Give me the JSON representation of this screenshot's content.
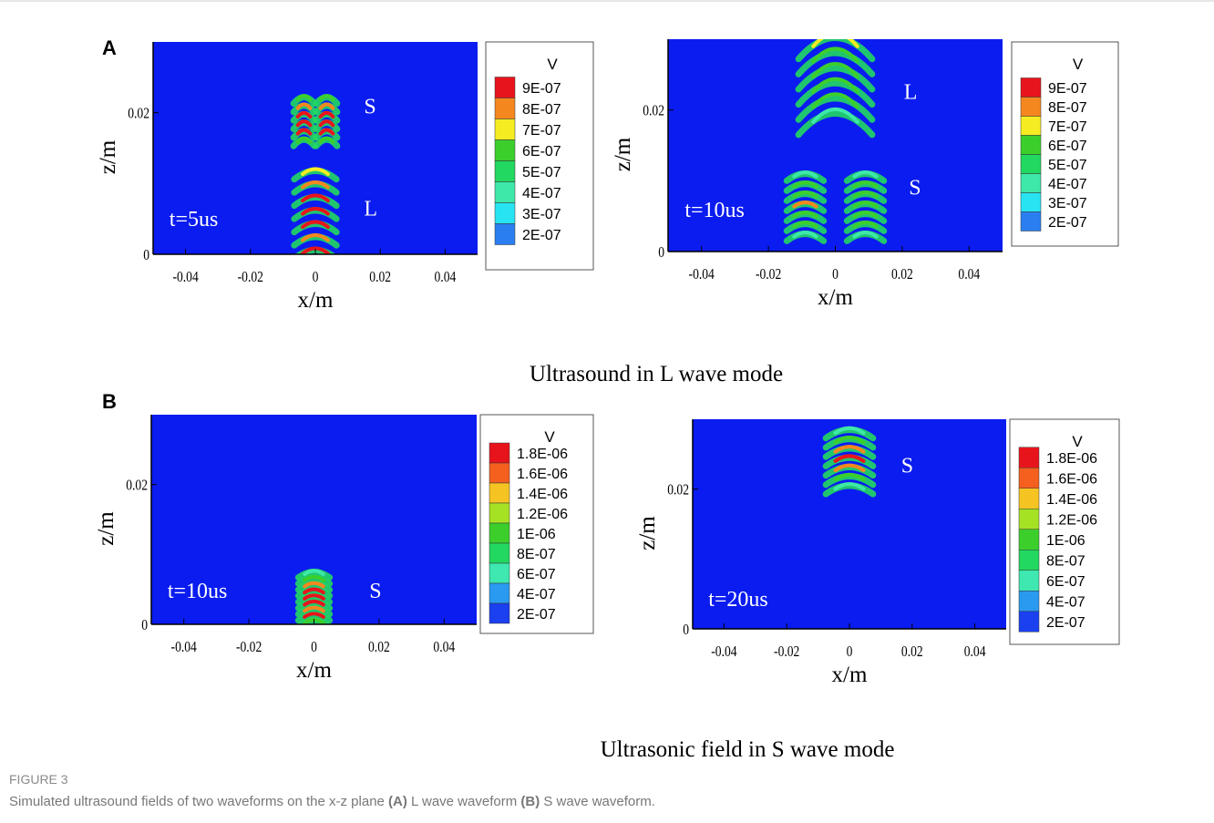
{
  "panel_labels": [
    "A",
    "B"
  ],
  "subtitles": [
    "Ultrasound in L wave mode",
    "Ultrasonic field in S wave mode"
  ],
  "caption": {
    "label": "FIGURE 3",
    "parts": [
      "Simulated ultrasound fields of two waveforms on the x-z plane ",
      "(A)",
      " L wave waveform ",
      "(B)",
      " S wave waveform."
    ]
  },
  "chart_data": [
    {
      "type": "contour",
      "xlabel": "x/m",
      "ylabel": "z/m",
      "xlim": [
        -0.05,
        0.05
      ],
      "ylim": [
        0,
        0.03
      ],
      "xticks": [
        -0.04,
        -0.02,
        0,
        0.02,
        0.04
      ],
      "yticks": [
        0,
        0.02
      ],
      "background": "#0b1cf0",
      "legend_title": "V",
      "levels": [
        {
          "value": 9e-07,
          "label": "9E-07"
        },
        {
          "value": 8e-07,
          "label": "8E-07"
        },
        {
          "value": 7e-07,
          "label": "7E-07"
        },
        {
          "value": 6e-07,
          "label": "6E-07"
        },
        {
          "value": 5e-07,
          "label": "5E-07"
        },
        {
          "value": 4e-07,
          "label": "4E-07"
        },
        {
          "value": 3e-07,
          "label": "3E-07"
        },
        {
          "value": 2e-07,
          "label": "2E-07"
        }
      ],
      "level_colors": [
        "#e8141c",
        "#f5871f",
        "#f6ec22",
        "#3ccf2c",
        "#22d860",
        "#3ee8a8",
        "#28e4f2",
        "#2a7ef0"
      ],
      "annotations": [
        {
          "text": "S",
          "x": 0.015,
          "y": 0.0209
        },
        {
          "text": "L",
          "x": 0.015,
          "y": 0.0065
        },
        {
          "text": "t=5us",
          "x": -0.045,
          "y": 0.005
        }
      ]
    },
    {
      "type": "contour",
      "xlabel": "x/m",
      "ylabel": "z/m",
      "xlim": [
        -0.05,
        0.05
      ],
      "ylim": [
        0,
        0.03
      ],
      "xticks": [
        -0.04,
        -0.02,
        0,
        0.02,
        0.04
      ],
      "yticks": [
        0,
        0.02
      ],
      "background": "#0b1cf0",
      "legend_title": "V",
      "levels": [
        {
          "value": 9e-07,
          "label": "9E-07"
        },
        {
          "value": 8e-07,
          "label": "8E-07"
        },
        {
          "value": 7e-07,
          "label": "7E-07"
        },
        {
          "value": 6e-07,
          "label": "6E-07"
        },
        {
          "value": 5e-07,
          "label": "5E-07"
        },
        {
          "value": 4e-07,
          "label": "4E-07"
        },
        {
          "value": 3e-07,
          "label": "3E-07"
        },
        {
          "value": 2e-07,
          "label": "2E-07"
        }
      ],
      "level_colors": [
        "#e8141c",
        "#f5871f",
        "#f6ec22",
        "#3ccf2c",
        "#22d860",
        "#3ee8a8",
        "#28e4f2",
        "#2a7ef0"
      ],
      "annotations": [
        {
          "text": "L",
          "x": 0.0205,
          "y": 0.0226
        },
        {
          "text": "S",
          "x": 0.022,
          "y": 0.0091
        },
        {
          "text": "t=10us",
          "x": -0.045,
          "y": 0.0059
        }
      ]
    },
    {
      "type": "contour",
      "xlabel": "x/m",
      "ylabel": "z/m",
      "xlim": [
        -0.05,
        0.05
      ],
      "ylim": [
        0,
        0.03
      ],
      "xticks": [
        -0.04,
        -0.02,
        0,
        0.02,
        0.04
      ],
      "yticks": [
        0,
        0.02
      ],
      "background": "#0b1cf0",
      "legend_title": "V",
      "levels": [
        {
          "value": 1.8e-06,
          "label": "1.8E-06"
        },
        {
          "value": 1.6e-06,
          "label": "1.6E-06"
        },
        {
          "value": 1.4e-06,
          "label": "1.4E-06"
        },
        {
          "value": 1.2e-06,
          "label": "1.2E-06"
        },
        {
          "value": 1e-06,
          "label": "1E-06"
        },
        {
          "value": 8e-07,
          "label": "8E-07"
        },
        {
          "value": 6e-07,
          "label": "6E-07"
        },
        {
          "value": 4e-07,
          "label": "4E-07"
        },
        {
          "value": 2e-07,
          "label": "2E-07"
        }
      ],
      "level_colors": [
        "#e8141c",
        "#f5601f",
        "#f6c422",
        "#a6e224",
        "#3ccf2c",
        "#22d860",
        "#3ee8b0",
        "#2a9af0",
        "#1a40f0"
      ],
      "annotations": [
        {
          "text": "S",
          "x": 0.017,
          "y": 0.0048
        },
        {
          "text": "t=10us",
          "x": -0.045,
          "y": 0.0048
        }
      ]
    },
    {
      "type": "contour",
      "xlabel": "x/m",
      "ylabel": "z/m",
      "xlim": [
        -0.05,
        0.05
      ],
      "ylim": [
        0,
        0.03
      ],
      "xticks": [
        -0.04,
        -0.02,
        0,
        0.02,
        0.04
      ],
      "yticks": [
        0,
        0.02
      ],
      "background": "#0b1cf0",
      "legend_title": "V",
      "levels": [
        {
          "value": 1.8e-06,
          "label": "1.8E-06"
        },
        {
          "value": 1.6e-06,
          "label": "1.6E-06"
        },
        {
          "value": 1.4e-06,
          "label": "1.4E-06"
        },
        {
          "value": 1.2e-06,
          "label": "1.2E-06"
        },
        {
          "value": 1e-06,
          "label": "1E-06"
        },
        {
          "value": 8e-07,
          "label": "8E-07"
        },
        {
          "value": 6e-07,
          "label": "6E-07"
        },
        {
          "value": 4e-07,
          "label": "4E-07"
        },
        {
          "value": 2e-07,
          "label": "2E-07"
        }
      ],
      "level_colors": [
        "#e8141c",
        "#f5601f",
        "#f6c422",
        "#a6e224",
        "#3ccf2c",
        "#22d860",
        "#3ee8b0",
        "#2a9af0",
        "#1a40f0"
      ],
      "annotations": [
        {
          "text": "S",
          "x": 0.0165,
          "y": 0.0234
        },
        {
          "text": "t=20us",
          "x": -0.045,
          "y": 0.0043
        }
      ]
    }
  ]
}
